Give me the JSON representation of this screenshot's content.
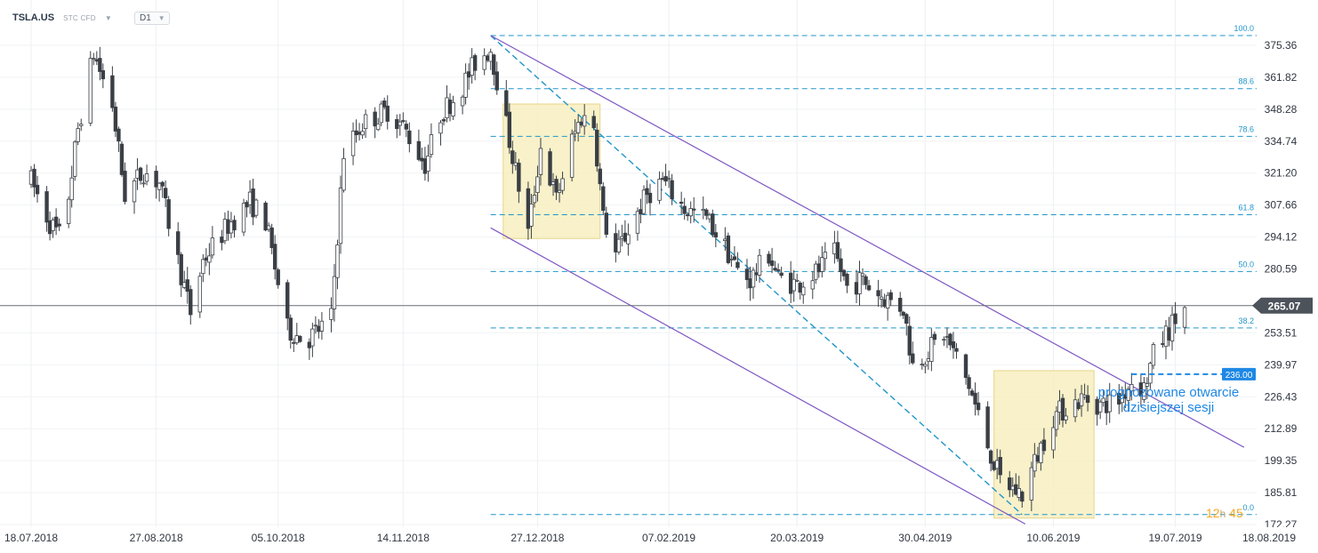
{
  "header": {
    "symbol": "TSLA.US",
    "instrument_type": "STC CFD",
    "timeframe": "D1",
    "dropdown_icon": "caret-down-icon"
  },
  "annotation": {
    "line1": "prognozowane otwarcie",
    "line2": "dzisiejszej sesji"
  },
  "timer": {
    "hours": "12",
    "h_unit": "h",
    "minutes": "45"
  },
  "colors": {
    "up": "#ffffff",
    "down": "#3a3f45",
    "wick": "#3a3f45",
    "fib": "#2196c9",
    "channel": "#7e57c2",
    "zone_fill": "#f7efc0",
    "zone_stroke": "#e8d58a",
    "price_tag": "#4d535b",
    "forecast_tag": "#1e88e5"
  },
  "chart_data": {
    "type": "candlestick",
    "x_type": "date",
    "x_tick_labels": [
      "18.07.2018",
      "27.08.2018",
      "05.10.2018",
      "14.11.2018",
      "27.12.2018",
      "07.02.2019",
      "20.03.2019",
      "30.04.2019",
      "10.06.2019",
      "19.07.2019",
      "18.08.2019"
    ],
    "y_tick_labels": [
      "375.36",
      "361.82",
      "348.28",
      "334.74",
      "321.20",
      "307.66",
      "294.12",
      "280.59",
      "265.07",
      "253.51",
      "239.97",
      "226.43",
      "212.89",
      "199.35",
      "185.81",
      "172.27"
    ],
    "ylim": [
      168,
      383
    ],
    "last_price": 265.07,
    "last_price_label": "265.07",
    "forecast_open": 236.0,
    "forecast_open_label": "236.00",
    "fibonacci": {
      "start_date": "2018-12-12",
      "end_date": "2019-05-31",
      "levels": [
        {
          "label": "100.0",
          "price": 379.5
        },
        {
          "label": "88.6",
          "price": 357.0
        },
        {
          "label": "78.6",
          "price": 336.8
        },
        {
          "label": "61.8",
          "price": 303.6
        },
        {
          "label": "50.0",
          "price": 279.5
        },
        {
          "label": "38.2",
          "price": 255.6
        },
        {
          "label": "0.0",
          "price": 176.5
        }
      ]
    },
    "fib_diagonal": {
      "from": [
        "2018-12-12",
        379.5
      ],
      "to": [
        "2019-05-31",
        176.5
      ]
    },
    "channel": {
      "upper": {
        "from": [
          "2018-12-12",
          379.5
        ],
        "to": [
          "2019-08-10",
          205.0
        ]
      },
      "lower": {
        "from": [
          "2018-12-12",
          298.0
        ],
        "to": [
          "2019-06-01",
          172.5
        ]
      }
    },
    "zones": [
      {
        "from": "2018-12-16",
        "to": "2019-01-16",
        "high": 350.5,
        "low": 293.5
      },
      {
        "from": "2019-05-22",
        "to": "2019-06-23",
        "high": 237.5,
        "low": 175.0
      }
    ],
    "anchors": [
      [
        "2018-07-18",
        318
      ],
      [
        "2018-07-24",
        300
      ],
      [
        "2018-07-28",
        293
      ],
      [
        "2018-08-02",
        340
      ],
      [
        "2018-08-07",
        372
      ],
      [
        "2018-08-13",
        350
      ],
      [
        "2018-08-17",
        312
      ],
      [
        "2018-08-23",
        322
      ],
      [
        "2018-08-28",
        317
      ],
      [
        "2018-09-07",
        262
      ],
      [
        "2018-09-11",
        284
      ],
      [
        "2018-09-14",
        290
      ],
      [
        "2018-09-19",
        299
      ],
      [
        "2018-09-26",
        309
      ],
      [
        "2018-10-01",
        301
      ],
      [
        "2018-10-08",
        255
      ],
      [
        "2018-10-14",
        250
      ],
      [
        "2018-10-22",
        260
      ],
      [
        "2018-10-26",
        330
      ],
      [
        "2018-11-01",
        342
      ],
      [
        "2018-11-09",
        348
      ],
      [
        "2018-11-14",
        341
      ],
      [
        "2018-11-21",
        325
      ],
      [
        "2018-11-26",
        346
      ],
      [
        "2018-12-03",
        358
      ],
      [
        "2018-12-07",
        368
      ],
      [
        "2018-12-12",
        374
      ],
      [
        "2018-12-18",
        335
      ],
      [
        "2018-12-24",
        296
      ],
      [
        "2018-12-28",
        332
      ],
      [
        "2019-01-02",
        310
      ],
      [
        "2019-01-07",
        335
      ],
      [
        "2019-01-10",
        345
      ],
      [
        "2019-01-14",
        342
      ],
      [
        "2019-01-17",
        302
      ],
      [
        "2019-01-21",
        287
      ],
      [
        "2019-01-25",
        297
      ],
      [
        "2019-01-31",
        312
      ],
      [
        "2019-02-05",
        318
      ],
      [
        "2019-02-12",
        306
      ],
      [
        "2019-02-19",
        302
      ],
      [
        "2019-02-25",
        290
      ],
      [
        "2019-03-01",
        280
      ],
      [
        "2019-03-05",
        276
      ],
      [
        "2019-03-11",
        287
      ],
      [
        "2019-03-14",
        277
      ],
      [
        "2019-03-20",
        274
      ],
      [
        "2019-03-26",
        279
      ],
      [
        "2019-04-01",
        287
      ],
      [
        "2019-04-05",
        273
      ],
      [
        "2019-04-10",
        276
      ],
      [
        "2019-04-15",
        270
      ],
      [
        "2019-04-23",
        264
      ],
      [
        "2019-04-26",
        240
      ],
      [
        "2019-05-01",
        246
      ],
      [
        "2019-05-06",
        253
      ],
      [
        "2019-05-10",
        243
      ],
      [
        "2019-05-14",
        231
      ],
      [
        "2019-05-20",
        206
      ],
      [
        "2019-05-24",
        191
      ],
      [
        "2019-05-31",
        185
      ],
      [
        "2019-06-05",
        202
      ],
      [
        "2019-06-10",
        218
      ],
      [
        "2019-06-14",
        222
      ],
      [
        "2019-06-20",
        226
      ],
      [
        "2019-06-25",
        223
      ],
      [
        "2019-07-01",
        225
      ],
      [
        "2019-07-05",
        233
      ],
      [
        "2019-07-09",
        230
      ],
      [
        "2019-07-12",
        244
      ],
      [
        "2019-07-16",
        253
      ],
      [
        "2019-07-19",
        259
      ],
      [
        "2019-07-22",
        264
      ]
    ]
  }
}
